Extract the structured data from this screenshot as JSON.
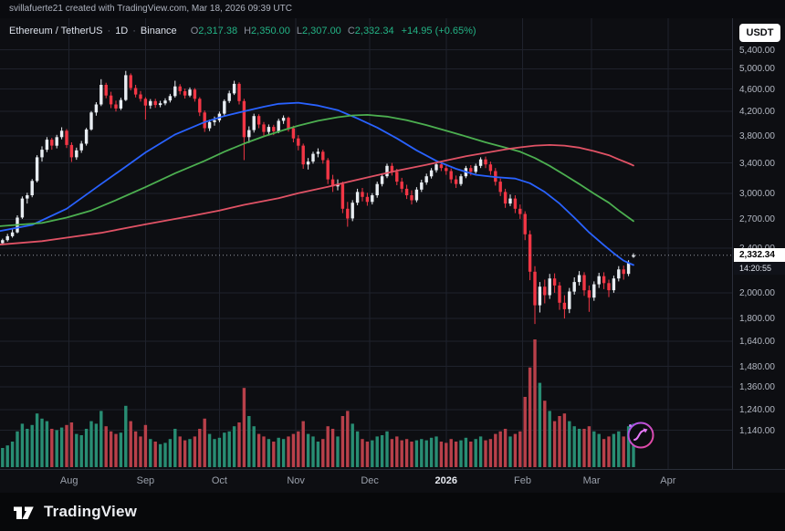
{
  "app": {
    "attribution": "svillafuerte21 created with TradingView.com, Mar 18, 2026 09:39 UTC",
    "footer_brand": "TradingView"
  },
  "legend": {
    "symbol": "Ethereum / TetherUS",
    "sep": "·",
    "interval": "1D",
    "exchange": "Binance",
    "ohlc": [
      {
        "label": "O",
        "value": "2,317.38"
      },
      {
        "label": "H",
        "value": "2,350.00"
      },
      {
        "label": "L",
        "value": "2,307.00"
      },
      {
        "label": "C",
        "value": "2,332.34"
      }
    ],
    "change": "+14.95 (+0.65%)"
  },
  "price_scale": {
    "currency_button": "USDT",
    "labels": [
      "5,400.00",
      "5,000.00",
      "4,600.00",
      "4,200.00",
      "3,800.00",
      "3,400.00",
      "3,000.00",
      "2,700.00",
      "2,400.00",
      "2,000.00",
      "1,800.00",
      "1,640.00",
      "1,480.00",
      "1,360.00",
      "1,240.00",
      "1,140.00"
    ],
    "last_price_label": "2,332.34",
    "countdown": "14:20:55"
  },
  "colors": {
    "bg": "#0d0e12",
    "grid": "#1f222c",
    "up": "#e8edf2",
    "down": "#f23645",
    "vol_up": "#288d73",
    "vol_down": "#b8404a",
    "last_line": "#9598a1",
    "accent_green": "#23b385"
  },
  "chart_data": {
    "type": "candlestick",
    "symbol": "Ethereum / TetherUS",
    "exchange": "Binance",
    "interval": "1D",
    "price_scale_type": "log",
    "start_date": "2025-07-01",
    "end_date": "2026-03-18",
    "days_per_candle": 2,
    "last_candle": {
      "open": 2317.38,
      "high": 2350.0,
      "low": 2307.0,
      "close": 2332.34,
      "change": 14.95,
      "change_pct": 0.65
    },
    "price_ticks": [
      5400,
      5000,
      4600,
      4200,
      3800,
      3400,
      3000,
      2700,
      2400,
      2000,
      1800,
      1640,
      1480,
      1360,
      1240,
      1140
    ],
    "x_ticks": [
      {
        "label": "Aug",
        "i": 15.5
      },
      {
        "label": "Sep",
        "i": 31
      },
      {
        "label": "Oct",
        "i": 46
      },
      {
        "label": "Nov",
        "i": 61.5
      },
      {
        "label": "Dec",
        "i": 76.5
      },
      {
        "label": "2026",
        "i": 92
      },
      {
        "label": "Feb",
        "i": 107.5
      },
      {
        "label": "Mar",
        "i": 121.5
      },
      {
        "label": "Apr",
        "i": 137
      }
    ],
    "highlight_tick": "2026",
    "volume_unit": "relative-percent",
    "candles": [
      [
        2405,
        2445,
        2375,
        2420,
        18
      ],
      [
        2420,
        2470,
        2400,
        2450,
        16
      ],
      [
        2450,
        2495,
        2430,
        2480,
        15
      ],
      [
        2480,
        2545,
        2465,
        2520,
        17
      ],
      [
        2520,
        2590,
        2505,
        2560,
        20
      ],
      [
        2560,
        2745,
        2550,
        2720,
        28
      ],
      [
        2720,
        2965,
        2705,
        2940,
        34
      ],
      [
        2940,
        3010,
        2880,
        2980,
        30
      ],
      [
        2980,
        3185,
        2955,
        3160,
        33
      ],
      [
        3160,
        3510,
        3140,
        3480,
        42
      ],
      [
        3480,
        3640,
        3420,
        3590,
        38
      ],
      [
        3590,
        3780,
        3555,
        3740,
        36
      ],
      [
        3740,
        3770,
        3590,
        3650,
        30
      ],
      [
        3650,
        3815,
        3610,
        3780,
        29
      ],
      [
        3780,
        3935,
        3745,
        3880,
        31
      ],
      [
        3880,
        3905,
        3615,
        3660,
        33
      ],
      [
        3660,
        3700,
        3415,
        3480,
        35
      ],
      [
        3480,
        3620,
        3445,
        3580,
        26
      ],
      [
        3580,
        3720,
        3545,
        3680,
        25
      ],
      [
        3680,
        3925,
        3650,
        3900,
        30
      ],
      [
        3900,
        4205,
        3880,
        4180,
        36
      ],
      [
        4180,
        4360,
        4125,
        4320,
        34
      ],
      [
        4320,
        4790,
        4290,
        4680,
        44
      ],
      [
        4680,
        4720,
        4430,
        4480,
        32
      ],
      [
        4480,
        4550,
        4255,
        4320,
        28
      ],
      [
        4320,
        4390,
        4195,
        4250,
        26
      ],
      [
        4250,
        4440,
        4220,
        4400,
        27
      ],
      [
        4400,
        4955,
        4380,
        4870,
        48
      ],
      [
        4870,
        4905,
        4575,
        4620,
        36
      ],
      [
        4620,
        4680,
        4445,
        4500,
        28
      ],
      [
        4500,
        4565,
        4370,
        4420,
        24
      ],
      [
        4420,
        4450,
        4060,
        4300,
        33
      ],
      [
        4300,
        4415,
        4245,
        4380,
        22
      ],
      [
        4380,
        4420,
        4260,
        4310,
        20
      ],
      [
        4310,
        4385,
        4270,
        4340,
        18
      ],
      [
        4340,
        4430,
        4305,
        4390,
        19
      ],
      [
        4390,
        4510,
        4355,
        4470,
        22
      ],
      [
        4470,
        4760,
        4440,
        4650,
        30
      ],
      [
        4650,
        4695,
        4500,
        4560,
        24
      ],
      [
        4560,
        4610,
        4425,
        4480,
        21
      ],
      [
        4480,
        4630,
        4450,
        4590,
        22
      ],
      [
        4590,
        4620,
        4370,
        4420,
        24
      ],
      [
        4420,
        4450,
        4120,
        4180,
        30
      ],
      [
        4180,
        4215,
        3860,
        3920,
        38
      ],
      [
        3920,
        4060,
        3875,
        4020,
        26
      ],
      [
        4020,
        4110,
        3960,
        4050,
        22
      ],
      [
        4050,
        4195,
        4015,
        4160,
        23
      ],
      [
        4160,
        4410,
        4130,
        4380,
        27
      ],
      [
        4380,
        4570,
        4345,
        4520,
        28
      ],
      [
        4520,
        4760,
        4490,
        4700,
        32
      ],
      [
        4700,
        4730,
        4320,
        4380,
        35
      ],
      [
        4380,
        4420,
        3440,
        3780,
        62
      ],
      [
        3780,
        3950,
        3690,
        3890,
        40
      ],
      [
        3890,
        4160,
        3850,
        4120,
        32
      ],
      [
        4120,
        4150,
        3920,
        3980,
        26
      ],
      [
        3980,
        4020,
        3795,
        3860,
        24
      ],
      [
        3860,
        3980,
        3820,
        3940,
        22
      ],
      [
        3940,
        3975,
        3810,
        3870,
        20
      ],
      [
        3870,
        4075,
        3840,
        4040,
        23
      ],
      [
        4040,
        4130,
        3990,
        4090,
        22
      ],
      [
        4090,
        4110,
        3865,
        3920,
        24
      ],
      [
        3920,
        3960,
        3700,
        3760,
        26
      ],
      [
        3760,
        3810,
        3580,
        3650,
        28
      ],
      [
        3650,
        3680,
        3320,
        3380,
        36
      ],
      [
        3380,
        3470,
        3310,
        3420,
        26
      ],
      [
        3420,
        3560,
        3390,
        3530,
        24
      ],
      [
        3530,
        3610,
        3480,
        3560,
        20
      ],
      [
        3560,
        3590,
        3390,
        3440,
        22
      ],
      [
        3440,
        3470,
        3120,
        3180,
        32
      ],
      [
        3180,
        3240,
        3020,
        3090,
        30
      ],
      [
        3090,
        3180,
        3040,
        3120,
        24
      ],
      [
        3120,
        3150,
        2770,
        2820,
        40
      ],
      [
        2820,
        2900,
        2620,
        2710,
        44
      ],
      [
        2710,
        2920,
        2680,
        2890,
        34
      ],
      [
        2890,
        3060,
        2860,
        3020,
        28
      ],
      [
        3020,
        3070,
        2905,
        2960,
        22
      ],
      [
        2960,
        3010,
        2855,
        2900,
        20
      ],
      [
        2900,
        3005,
        2870,
        2980,
        21
      ],
      [
        2980,
        3150,
        2950,
        3120,
        24
      ],
      [
        3120,
        3260,
        3090,
        3220,
        25
      ],
      [
        3220,
        3390,
        3195,
        3360,
        28
      ],
      [
        3360,
        3400,
        3230,
        3280,
        22
      ],
      [
        3280,
        3320,
        3105,
        3150,
        24
      ],
      [
        3150,
        3200,
        3015,
        3060,
        21
      ],
      [
        3060,
        3110,
        2935,
        2980,
        22
      ],
      [
        2980,
        3040,
        2870,
        2920,
        20
      ],
      [
        2920,
        3080,
        2895,
        3050,
        21
      ],
      [
        3050,
        3175,
        3020,
        3140,
        22
      ],
      [
        3140,
        3255,
        3110,
        3220,
        21
      ],
      [
        3220,
        3330,
        3190,
        3300,
        23
      ],
      [
        3300,
        3410,
        3270,
        3380,
        24
      ],
      [
        3380,
        3420,
        3290,
        3330,
        20
      ],
      [
        3330,
        3370,
        3240,
        3290,
        19
      ],
      [
        3290,
        3325,
        3130,
        3180,
        22
      ],
      [
        3180,
        3230,
        3070,
        3120,
        20
      ],
      [
        3120,
        3250,
        3095,
        3220,
        21
      ],
      [
        3220,
        3360,
        3195,
        3330,
        23
      ],
      [
        3330,
        3370,
        3230,
        3280,
        20
      ],
      [
        3280,
        3390,
        3255,
        3360,
        22
      ],
      [
        3360,
        3480,
        3330,
        3450,
        24
      ],
      [
        3450,
        3490,
        3330,
        3380,
        21
      ],
      [
        3380,
        3420,
        3240,
        3290,
        22
      ],
      [
        3290,
        3330,
        3100,
        3150,
        26
      ],
      [
        3150,
        3190,
        2970,
        3020,
        28
      ],
      [
        3020,
        3060,
        2830,
        2880,
        30
      ],
      [
        2880,
        2990,
        2850,
        2940,
        24
      ],
      [
        2940,
        2980,
        2770,
        2820,
        26
      ],
      [
        2820,
        2870,
        2705,
        2760,
        28
      ],
      [
        2760,
        2790,
        2480,
        2540,
        55
      ],
      [
        2540,
        2580,
        2105,
        2180,
        78
      ],
      [
        2180,
        2230,
        1760,
        1900,
        100
      ],
      [
        1900,
        2090,
        1845,
        2050,
        66
      ],
      [
        2050,
        2110,
        1915,
        1980,
        52
      ],
      [
        1980,
        2160,
        1950,
        2120,
        44
      ],
      [
        2120,
        2165,
        2000,
        2060,
        36
      ],
      [
        2060,
        2090,
        1865,
        1920,
        40
      ],
      [
        1920,
        1980,
        1800,
        1870,
        42
      ],
      [
        1870,
        2040,
        1840,
        2010,
        36
      ],
      [
        2010,
        2130,
        1985,
        2090,
        32
      ],
      [
        2090,
        2185,
        2060,
        2150,
        30
      ],
      [
        2150,
        2175,
        1975,
        2020,
        30
      ],
      [
        2020,
        2060,
        1850,
        1960,
        32
      ],
      [
        1960,
        2095,
        1935,
        2070,
        28
      ],
      [
        2070,
        2170,
        2040,
        2140,
        26
      ],
      [
        2140,
        2175,
        2030,
        2080,
        22
      ],
      [
        2080,
        2110,
        1965,
        2020,
        24
      ],
      [
        2020,
        2145,
        2000,
        2120,
        26
      ],
      [
        2120,
        2230,
        2095,
        2200,
        28
      ],
      [
        2200,
        2235,
        2110,
        2160,
        24
      ],
      [
        2160,
        2285,
        2140,
        2260,
        32
      ],
      [
        2317.38,
        2350,
        2307,
        2332.34,
        34
      ]
    ],
    "moving_averages": [
      {
        "name": "ma-fast",
        "color": "#2962ff",
        "points": [
          [
            0,
            2560
          ],
          [
            8,
            2640
          ],
          [
            15,
            2820
          ],
          [
            22,
            3120
          ],
          [
            27,
            3350
          ],
          [
            31,
            3550
          ],
          [
            37,
            3820
          ],
          [
            43,
            4020
          ],
          [
            47,
            4120
          ],
          [
            51,
            4200
          ],
          [
            55,
            4280
          ],
          [
            58,
            4330
          ],
          [
            62,
            4350
          ],
          [
            66,
            4300
          ],
          [
            70,
            4220
          ],
          [
            74,
            4080
          ],
          [
            78,
            3930
          ],
          [
            82,
            3760
          ],
          [
            86,
            3580
          ],
          [
            90,
            3430
          ],
          [
            94,
            3320
          ],
          [
            98,
            3240
          ],
          [
            102,
            3210
          ],
          [
            106,
            3190
          ],
          [
            109,
            3130
          ],
          [
            112,
            3020
          ],
          [
            115,
            2880
          ],
          [
            118,
            2720
          ],
          [
            121,
            2560
          ],
          [
            124,
            2430
          ],
          [
            126,
            2350
          ],
          [
            128,
            2280
          ],
          [
            130,
            2240
          ]
        ]
      },
      {
        "name": "ma-mid",
        "color": "#4caf50",
        "points": [
          [
            0,
            2620
          ],
          [
            10,
            2660
          ],
          [
            15,
            2720
          ],
          [
            20,
            2800
          ],
          [
            25,
            2920
          ],
          [
            31,
            3080
          ],
          [
            37,
            3260
          ],
          [
            43,
            3430
          ],
          [
            47,
            3560
          ],
          [
            51,
            3680
          ],
          [
            55,
            3790
          ],
          [
            59,
            3890
          ],
          [
            62,
            3960
          ],
          [
            66,
            4040
          ],
          [
            70,
            4100
          ],
          [
            73,
            4130
          ],
          [
            76,
            4140
          ],
          [
            80,
            4110
          ],
          [
            84,
            4050
          ],
          [
            88,
            3970
          ],
          [
            92,
            3880
          ],
          [
            96,
            3790
          ],
          [
            100,
            3700
          ],
          [
            104,
            3620
          ],
          [
            107,
            3560
          ],
          [
            110,
            3470
          ],
          [
            113,
            3360
          ],
          [
            116,
            3240
          ],
          [
            119,
            3120
          ],
          [
            122,
            3000
          ],
          [
            125,
            2890
          ],
          [
            127,
            2800
          ],
          [
            129,
            2720
          ],
          [
            130,
            2680
          ]
        ]
      },
      {
        "name": "ma-slow",
        "color": "#e05265",
        "points": [
          [
            0,
            2430
          ],
          [
            10,
            2470
          ],
          [
            15,
            2505
          ],
          [
            22,
            2555
          ],
          [
            31,
            2645
          ],
          [
            40,
            2735
          ],
          [
            46,
            2800
          ],
          [
            51,
            2865
          ],
          [
            58,
            2945
          ],
          [
            62,
            3005
          ],
          [
            68,
            3085
          ],
          [
            72,
            3145
          ],
          [
            76,
            3205
          ],
          [
            82,
            3295
          ],
          [
            88,
            3375
          ],
          [
            92,
            3435
          ],
          [
            96,
            3495
          ],
          [
            100,
            3545
          ],
          [
            104,
            3595
          ],
          [
            107,
            3625
          ],
          [
            110,
            3650
          ],
          [
            113,
            3660
          ],
          [
            116,
            3650
          ],
          [
            119,
            3620
          ],
          [
            122,
            3570
          ],
          [
            125,
            3510
          ],
          [
            127,
            3450
          ],
          [
            129,
            3395
          ],
          [
            130,
            3365
          ]
        ]
      }
    ]
  }
}
